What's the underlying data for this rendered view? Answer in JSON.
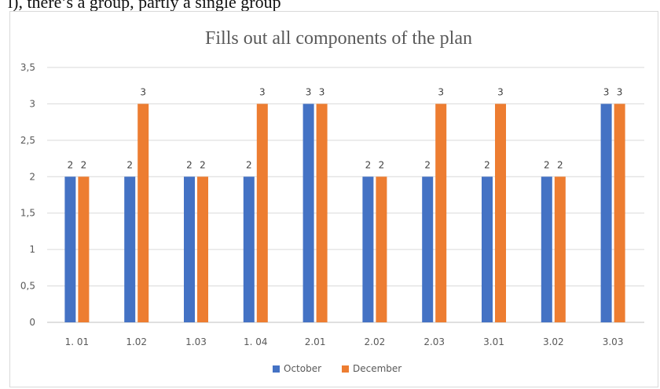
{
  "page": {
    "top_strip_text": "l), there’s a group, partly a single group"
  },
  "chart_data": {
    "type": "bar",
    "title": "Fills out all components of the plan",
    "xlabel": "",
    "ylabel": "",
    "categories": [
      "1. 01",
      "1.02",
      "1.03",
      "1. 04",
      "2.01",
      "2.02",
      "2.03",
      "3.01",
      "3.02",
      "3.03"
    ],
    "series": [
      {
        "name": "October",
        "color": "#4472C4",
        "values": [
          2,
          2,
          2,
          2,
          3,
          2,
          2,
          2,
          2,
          3
        ]
      },
      {
        "name": "December",
        "color": "#ED7D31",
        "values": [
          2,
          3,
          2,
          3,
          3,
          2,
          3,
          3,
          2,
          3
        ]
      }
    ],
    "ylim": [
      0,
      3.5
    ],
    "y_ticks": [
      0,
      0.5,
      1,
      1.5,
      2,
      2.5,
      3,
      3.5
    ],
    "y_tick_labels": [
      "0",
      "0,5",
      "1",
      "1,5",
      "2",
      "2,5",
      "3",
      "3,5"
    ],
    "grid": true,
    "legend_position": "bottom",
    "data_labels": true
  }
}
